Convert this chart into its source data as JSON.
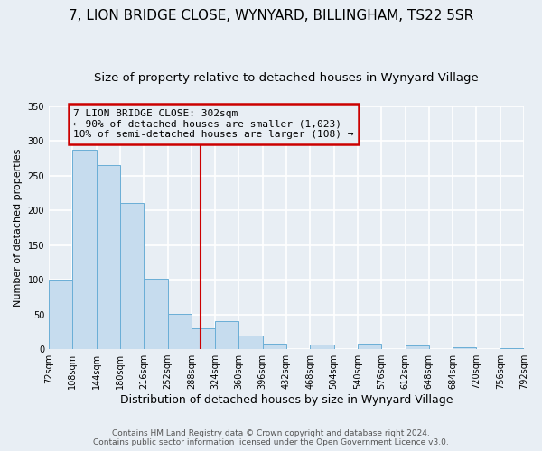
{
  "title": "7, LION BRIDGE CLOSE, WYNYARD, BILLINGHAM, TS22 5SR",
  "subtitle": "Size of property relative to detached houses in Wynyard Village",
  "xlabel": "Distribution of detached houses by size in Wynyard Village",
  "ylabel": "Number of detached properties",
  "footer_line1": "Contains HM Land Registry data © Crown copyright and database right 2024.",
  "footer_line2": "Contains public sector information licensed under the Open Government Licence v3.0.",
  "bin_edges": [
    72,
    108,
    144,
    180,
    216,
    252,
    288,
    324,
    360,
    396,
    432,
    468,
    504,
    540,
    576,
    612,
    648,
    684,
    720,
    756,
    792
  ],
  "bin_counts": [
    100,
    287,
    265,
    211,
    102,
    51,
    30,
    40,
    20,
    8,
    0,
    6,
    0,
    8,
    0,
    5,
    0,
    3,
    0,
    2
  ],
  "bar_color": "#c6dcee",
  "bar_edge_color": "#6aaed6",
  "property_size": 302,
  "vline_color": "#cc0000",
  "annotation_text_line1": "7 LION BRIDGE CLOSE: 302sqm",
  "annotation_text_line2": "← 90% of detached houses are smaller (1,023)",
  "annotation_text_line3": "10% of semi-detached houses are larger (108) →",
  "annotation_box_color": "#cc0000",
  "ylim": [
    0,
    350
  ],
  "yticks": [
    0,
    50,
    100,
    150,
    200,
    250,
    300,
    350
  ],
  "bg_color": "#e8eef4",
  "plot_bg_color": "#e8eef4",
  "grid_color": "#ffffff",
  "title_fontsize": 11,
  "subtitle_fontsize": 9.5,
  "ylabel_fontsize": 8,
  "xlabel_fontsize": 9,
  "tick_fontsize": 7,
  "footer_fontsize": 6.5,
  "annotation_fontsize": 8
}
